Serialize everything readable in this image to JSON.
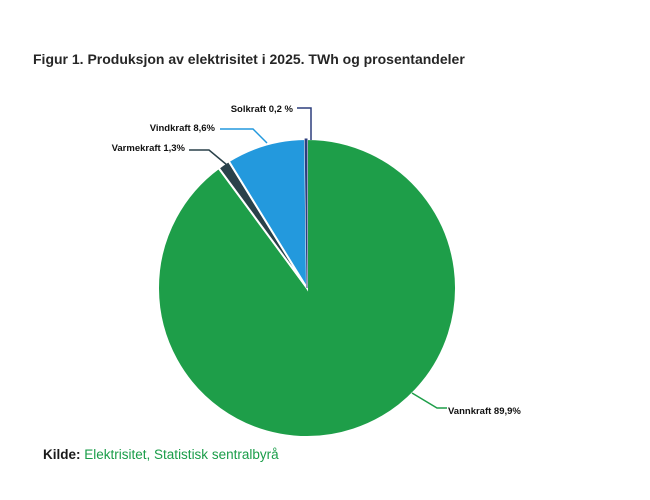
{
  "title": "Figur 1. Produksjon av elektrisitet i 2025. TWh og prosentandeler",
  "source": {
    "prefix": "Kilde:",
    "text": "Elektrisitet, Statistisk sentralbyrå",
    "link_color": "#1a9d49"
  },
  "chart_data": {
    "type": "pie",
    "title": "Figur 1. Produksjon av elektrisitet i 2025. TWh og prosentandeler",
    "unit": "prosentandeler",
    "start_angle": "12-oclock",
    "direction": "clockwise",
    "legend": "none",
    "slices": [
      {
        "name": "Vannkraft",
        "value": 89.9,
        "label": "Vannkraft 89,9%",
        "color": "#1e9e49"
      },
      {
        "name": "Varmekraft",
        "value": 1.3,
        "label": "Varmekraft 1,3%",
        "color": "#2a414a"
      },
      {
        "name": "Vindkraft",
        "value": 8.6,
        "label": "Vindkraft 8,6%",
        "color": "#2399dd"
      },
      {
        "name": "Solkraft",
        "value": 0.2,
        "label": "Solkraft 0,2 %",
        "color": "#2d3e7d"
      }
    ]
  }
}
